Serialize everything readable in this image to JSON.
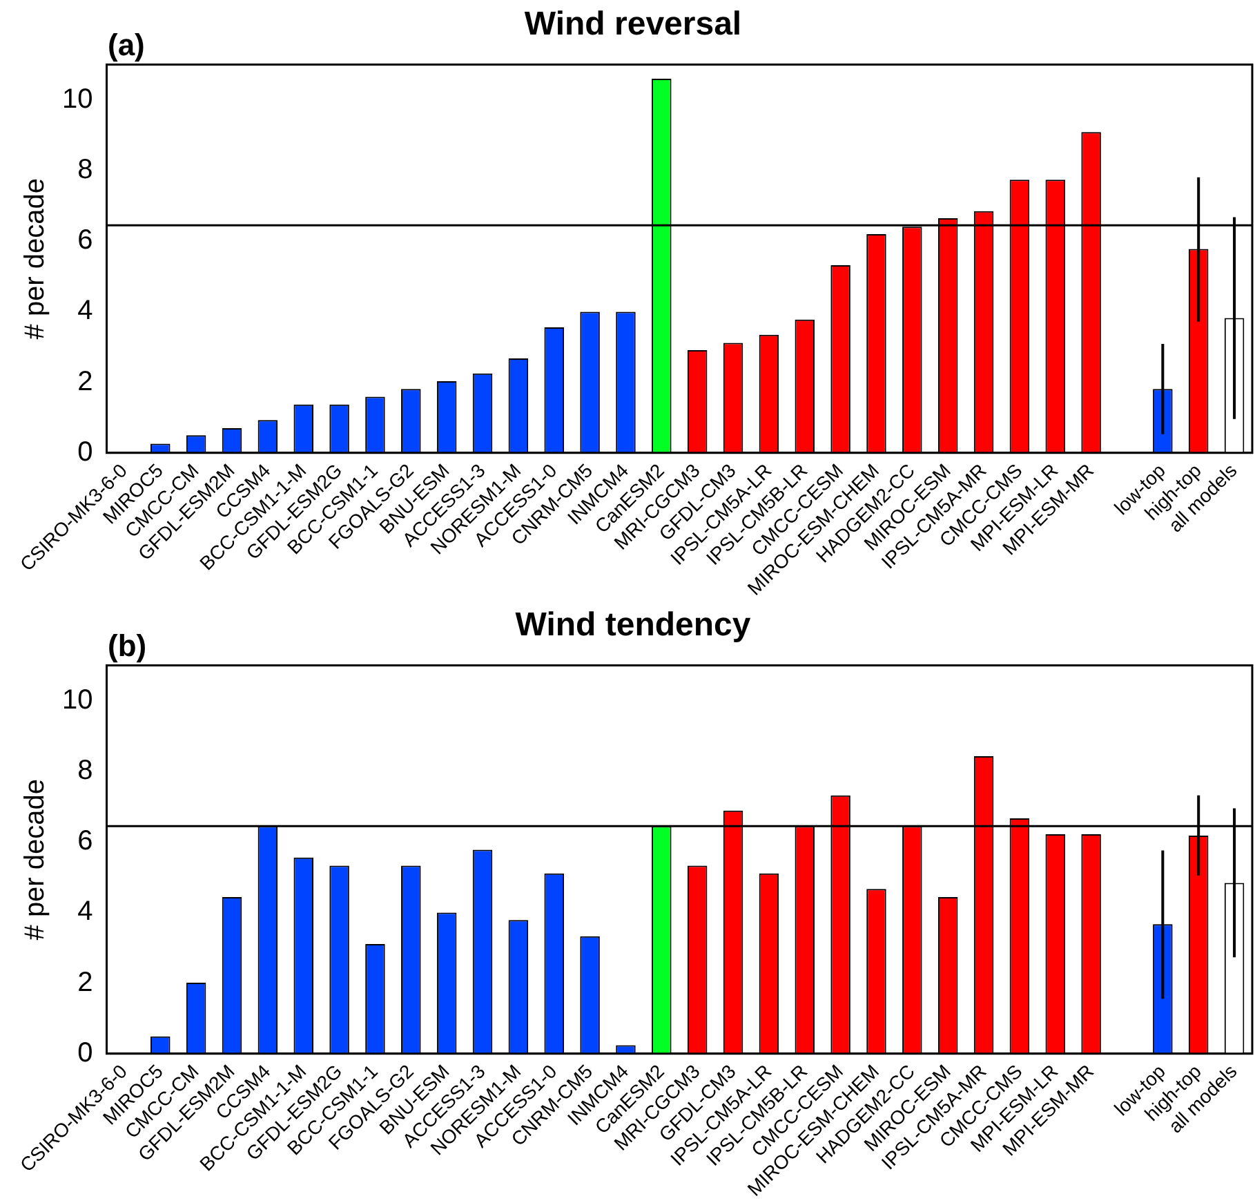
{
  "chart_data": [
    {
      "type": "bar",
      "title": "Wind reversal",
      "ylabel": "# per decade",
      "annotations": [
        "(a)"
      ],
      "categories": [
        "CSIRO-MK3-6-0",
        "MIROC5",
        "CMCC-CM",
        "GFDL-ESM2M",
        "CCSM4",
        "BCC-CSM1-1-M",
        "GFDL-ESM2G",
        "BCC-CSM1-1",
        "FGOALS-G2",
        "BNU-ESM",
        "ACCESS1-3",
        "NORESM1-M",
        "ACCESS1-0",
        "CNRM-CM5",
        "INMCM4",
        "CanESM2",
        "MRI-CGCM3",
        "GFDL-CM3",
        "IPSL-CM5A-LR",
        "IPSL-CM5B-LR",
        "CMCC-CESM",
        "MIROC-ESM-CHEM",
        "HADGEM2-CC",
        "MIROC-ESM",
        "IPSL-CM5A-MR",
        "CMCC-CMS",
        "MPI-ESM-LR",
        "MPI-ESM-MR",
        null,
        "low-top",
        "high-top",
        "all models"
      ],
      "values": [
        0,
        0.26,
        0.5,
        0.7,
        0.93,
        1.37,
        1.37,
        1.59,
        1.81,
        2.03,
        2.25,
        2.68,
        3.56,
        4.0,
        4.0,
        10.6,
        2.91,
        3.12,
        3.35,
        3.78,
        5.32,
        6.2,
        6.41,
        6.65,
        6.85,
        7.74,
        7.74,
        9.09,
        null,
        1.81,
        5.78,
        3.82
      ],
      "colors": [
        "#0044ff",
        "#0044ff",
        "#0044ff",
        "#0044ff",
        "#0044ff",
        "#0044ff",
        "#0044ff",
        "#0044ff",
        "#0044ff",
        "#0044ff",
        "#0044ff",
        "#0044ff",
        "#0044ff",
        "#0044ff",
        "#0044ff",
        "#00ff22",
        "#ff0000",
        "#ff0000",
        "#ff0000",
        "#ff0000",
        "#ff0000",
        "#ff0000",
        "#ff0000",
        "#ff0000",
        "#ff0000",
        "#ff0000",
        "#ff0000",
        "#ff0000",
        "#ffffff",
        "#0044ff",
        "#ff0000",
        "#ffffff"
      ],
      "errors": [
        null,
        null,
        null,
        null,
        null,
        null,
        null,
        null,
        null,
        null,
        null,
        null,
        null,
        null,
        null,
        null,
        null,
        null,
        null,
        null,
        null,
        null,
        null,
        null,
        null,
        null,
        null,
        null,
        null,
        [
          0.53,
          3.09
        ],
        [
          3.72,
          7.81
        ],
        [
          0.96,
          6.68
        ]
      ],
      "ylim": [
        0,
        11
      ],
      "yticks": [
        0,
        2,
        4,
        6,
        8,
        10
      ],
      "grid": false,
      "legend": false,
      "ref_lines": [
        {
          "axis": "y",
          "value": 6.45
        }
      ]
    },
    {
      "type": "bar",
      "title": "Wind tendency",
      "ylabel": "# per decade",
      "annotations": [
        "(b)"
      ],
      "categories": [
        "CSIRO-MK3-6-0",
        "MIROC5",
        "CMCC-CM",
        "GFDL-ESM2M",
        "CCSM4",
        "BCC-CSM1-1-M",
        "GFDL-ESM2G",
        "BCC-CSM1-1",
        "FGOALS-G2",
        "BNU-ESM",
        "ACCESS1-3",
        "NORESM1-M",
        "ACCESS1-0",
        "CNRM-CM5",
        "INMCM4",
        "CanESM2",
        "MRI-CGCM3",
        "GFDL-CM3",
        "IPSL-CM5A-LR",
        "IPSL-CM5B-LR",
        "CMCC-CESM",
        "MIROC-ESM-CHEM",
        "HADGEM2-CC",
        "MIROC-ESM",
        "IPSL-CM5A-MR",
        "CMCC-CMS",
        "MPI-ESM-LR",
        "MPI-ESM-MR",
        null,
        "low-top",
        "high-top",
        "all models"
      ],
      "values": [
        0,
        0.49,
        2.01,
        4.44,
        6.45,
        5.56,
        5.33,
        3.11,
        5.33,
        4.0,
        5.78,
        3.79,
        5.11,
        3.33,
        0.24,
        6.45,
        5.33,
        6.89,
        5.11,
        6.45,
        7.32,
        4.67,
        6.45,
        4.44,
        8.43,
        6.67,
        6.22,
        6.22,
        null,
        3.67,
        6.18,
        4.84
      ],
      "colors": [
        "#0044ff",
        "#0044ff",
        "#0044ff",
        "#0044ff",
        "#0044ff",
        "#0044ff",
        "#0044ff",
        "#0044ff",
        "#0044ff",
        "#0044ff",
        "#0044ff",
        "#0044ff",
        "#0044ff",
        "#0044ff",
        "#0044ff",
        "#00ff22",
        "#ff0000",
        "#ff0000",
        "#ff0000",
        "#ff0000",
        "#ff0000",
        "#ff0000",
        "#ff0000",
        "#ff0000",
        "#ff0000",
        "#ff0000",
        "#ff0000",
        "#ff0000",
        "#ffffff",
        "#0044ff",
        "#ff0000",
        "#ffffff"
      ],
      "errors": [
        null,
        null,
        null,
        null,
        null,
        null,
        null,
        null,
        null,
        null,
        null,
        null,
        null,
        null,
        null,
        null,
        null,
        null,
        null,
        null,
        null,
        null,
        null,
        null,
        null,
        null,
        null,
        null,
        null,
        [
          1.56,
          5.76
        ],
        [
          5.05,
          7.32
        ],
        [
          2.73,
          6.95
        ]
      ],
      "ylim": [
        0,
        11
      ],
      "yticks": [
        0,
        2,
        4,
        6,
        8,
        10
      ],
      "grid": false,
      "legend": false,
      "ref_lines": [
        {
          "axis": "y",
          "value": 6.45
        }
      ]
    }
  ]
}
